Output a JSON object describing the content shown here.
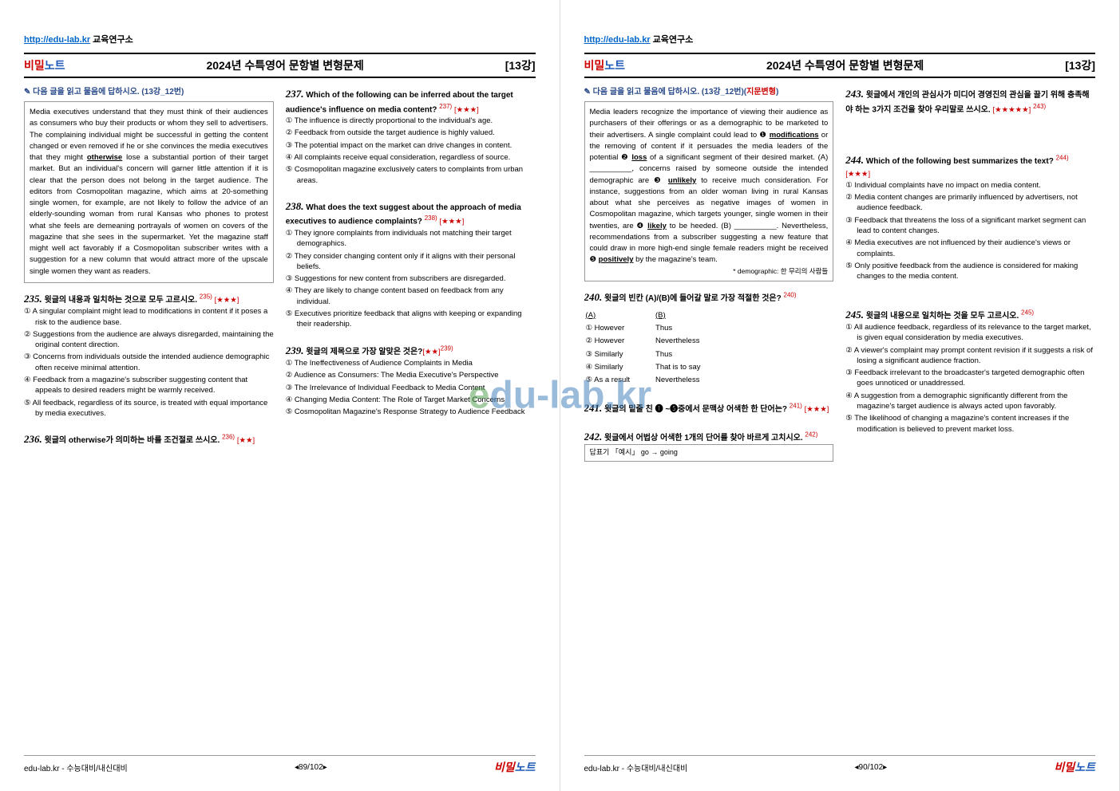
{
  "header": {
    "url": "http://edu-lab.kr",
    "lab": " 교육연구소",
    "secret": "비밀",
    "note": "노트",
    "title": "2024년 수특영어 문항별 변형문제",
    "lecture": "[13강]"
  },
  "watermark": {
    "part1": "e",
    "part2": "du-lab",
    "part3": ".kr"
  },
  "page1": {
    "instruction": "✎ 다음 글을 읽고 물음에 답하시오. (13강_12번)",
    "passage": "Media executives understand that they must think of their audiences as consumers who buy their products or whom they sell to advertisers. The complaining individual might be successful in getting the content changed or even removed if he or she convinces the media executives that they might ",
    "passage_ul": "otherwise",
    "passage2": " lose a substantial portion of their target market. But an individual's concern will garner little attention if it is clear that the person does not belong in the target audience. The editors from Cosmopolitan magazine, which aims at 20-something single women, for example, are not likely to follow the advice of an elderly-sounding woman from rural Kansas who phones to protest what she feels are demeaning portrayals of women on covers of the magazine that she sees in the supermarket. Yet the magazine staff might well act favorably if a Cosmopolitan subscriber writes with a suggestion for a new column that would attract more of the upscale single women they want as readers.",
    "q235": {
      "num": "235.",
      "text": "윗글의 내용과 일치하는 것으로 모두 고르시오.",
      "ref": "235)",
      "stars": "[★★★]",
      "c1": "① A singular complaint might lead to modifications in content if it poses a risk to the audience base.",
      "c2": "② Suggestions from the audience are always disregarded, maintaining the original content direction.",
      "c3": "③ Concerns from individuals outside the intended audience demographic often receive minimal attention.",
      "c4": "④ Feedback from a magazine's subscriber suggesting content that appeals to desired readers might be warmly received.",
      "c5": "⑤ All feedback, regardless of its source, is treated with equal importance by media executives."
    },
    "q236": {
      "num": "236.",
      "text": "윗글의 otherwise가 의미하는 바를 조건절로 쓰시오.",
      "ref": "236)",
      "stars": "[★★]"
    },
    "q237": {
      "num": "237.",
      "text": "Which of the following can be inferred about the target audience's influence on media content?",
      "ref": "237)",
      "stars": "[★★★]",
      "c1": "① The influence is directly proportional to the individual's age.",
      "c2": "② Feedback from outside the target audience is highly valued.",
      "c3": "③ The potential impact on the market can drive changes in content.",
      "c4": "④ All complaints receive equal consideration, regardless of source.",
      "c5": "⑤ Cosmopolitan magazine exclusively caters to complaints from urban areas."
    },
    "q238": {
      "num": "238.",
      "text": "What does the text suggest about the approach of media executives to audience complaints?",
      "ref": "238)",
      "stars": "[★★★]",
      "c1": "① They ignore complaints from individuals not matching their target demographics.",
      "c2": "② They consider changing content only if it aligns with their personal beliefs.",
      "c3": "③ Suggestions for new content from subscribers are disregarded.",
      "c4": "④ They are likely to change content based on feedback from any individual.",
      "c5": "⑤ Executives prioritize feedback that aligns with keeping or expanding their readership."
    },
    "q239": {
      "num": "239.",
      "text": "윗글의 제목으로 가장 알맞은 것은?",
      "stars": "[★★]",
      "ref": "239)",
      "c1": "① The Ineffectiveness of Audience Complaints in Media",
      "c2": "② Audience as Consumers: The Media Executive's Perspective",
      "c3": "③ The Irrelevance of Individual Feedback to Media Content",
      "c4": "④ Changing Media Content: The Role of Target Market Concerns",
      "c5": "⑤ Cosmopolitan Magazine's Response Strategy to Audience Feedback"
    }
  },
  "page2": {
    "instruction_pre": "✎ 다음 글을 읽고 물음에 답하시오. (13강_12번)(",
    "instruction_red": "지문변형",
    "instruction_post": ")",
    "passage_a": "Media leaders recognize the importance of viewing their audience as purchasers of their offerings or as a demographic to be marketed to their advertisers. A single complaint could lead to ❶ ",
    "passage_a_ul1": "modifications",
    "passage_b": " or the removing of content if it persuades the media leaders of the potential ❷ ",
    "passage_b_ul2": "loss",
    "passage_c": " of a significant segment of their desired market. (A) __________, concerns raised by someone outside the intended demographic are ❸ ",
    "passage_c_ul3": "unlikely",
    "passage_d": " to receive much consideration. For instance, suggestions from an older woman living in rural Kansas about what she perceives as negative images of women in Cosmopolitan magazine, which targets younger, single women in their twenties, are ❹ ",
    "passage_d_ul4": "likely",
    "passage_e": " to be heeded. (B) __________. Nevertheless, recommendations from a subscriber suggesting a new feature that could draw in more high-end single female readers might be received ❺ ",
    "passage_e_ul5": "positively",
    "passage_f": " by the magazine's team.",
    "footnote": "* demographic: 한 무리의 사람들",
    "q240": {
      "num": "240.",
      "text": "윗글의 빈칸 (A)/(B)에 들어갈 말로 가장 적절한 것은?",
      "ref": "240)",
      "hdr_a": "(A)",
      "hdr_b": "(B)",
      "r1a": "① However",
      "r1b": "Thus",
      "r2a": "② However",
      "r2b": "Nevertheless",
      "r3a": "③ Similarly",
      "r3b": "Thus",
      "r4a": "④ Similarly",
      "r4b": "That is to say",
      "r5a": "⑤ As a result",
      "r5b": "Nevertheless"
    },
    "q241": {
      "num": "241.",
      "text": "윗글의 밑줄 친 ❶ ~❺중에서 문맥상 어색한 한 단어는?",
      "ref": "241)",
      "stars": "[★★★]"
    },
    "q242": {
      "num": "242.",
      "text": "윗글에서 어법상 어색한 1개의 단어를 찾아 바르게 고치시오.",
      "ref": "242)",
      "example": "답표기 「예시」 go → going"
    },
    "q243": {
      "num": "243.",
      "text": "윗글에서 개인의 관심사가 미디어 경영진의 관심을 끌기 위해 충족해야 하는 3가지 조건을 찾아 우리말로 쓰시오.",
      "stars": "[★★★★★]",
      "ref": "243)"
    },
    "q244": {
      "num": "244.",
      "text": "Which of the following best summarizes the text?",
      "ref": "244)",
      "stars": "[★★★]",
      "c1": "① Individual complaints have no impact on media content.",
      "c2": "② Media content changes are primarily influenced by advertisers, not audience feedback.",
      "c3": "③ Feedback that threatens the loss of a significant market segment can lead to content changes.",
      "c4": "④ Media executives are not influenced by their audience's views or complaints.",
      "c5": "⑤ Only positive feedback from the audience is considered for making changes to the media content."
    },
    "q245": {
      "num": "245.",
      "text": "윗글의 내용으로 일치하는 것을 모두 고르시오.",
      "ref": "245)",
      "c1": "① All audience feedback, regardless of its relevance to the target market, is given equal consideration by media executives.",
      "c2": "② A viewer's complaint may prompt content revision if it suggests a risk of losing a significant audience fraction.",
      "c3": "③ Feedback irrelevant to the broadcaster's targeted demographic often goes unnoticed or unaddressed.",
      "c4": "④ A suggestion from a demographic significantly different from the magazine's target audience is always acted upon favorably.",
      "c5": "⑤ The likelihood of changing a magazine's content increases if the modification is believed to prevent market loss."
    }
  },
  "footer": {
    "left": "edu-lab.kr - 수능대비/내신대비",
    "page1": "◂89/102▸",
    "page2": "◂90/102▸"
  }
}
